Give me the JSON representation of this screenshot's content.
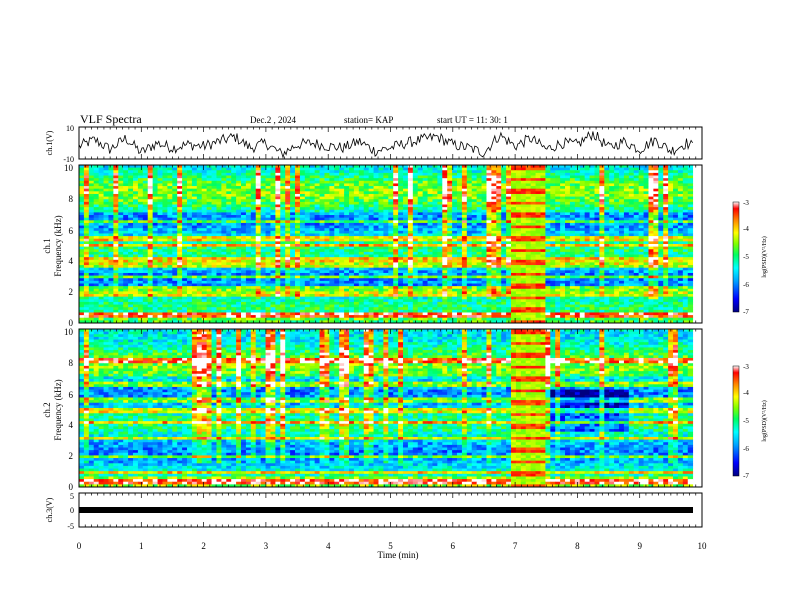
{
  "header": {
    "title": "VLF Spectra",
    "date": "Dec.2 , 2024",
    "station": "station= KAP",
    "start_ut": "start  UT =   11: 30: 1"
  },
  "colorbar": {
    "label": "log(PSD)(V²/Hz)",
    "ticks": [
      "-3",
      "-4",
      "-5",
      "-6",
      "-7"
    ],
    "stops": [
      "#000080",
      "#0000ff",
      "#00a0ff",
      "#00ffff",
      "#00ff80",
      "#80ff00",
      "#ffff00",
      "#ff8000",
      "#ff0000",
      "#ffffff"
    ]
  },
  "chart_data": [
    {
      "type": "line",
      "panel": "ch1-waveform",
      "ylabel": "ch.1(V)",
      "ylim": [
        -10,
        10
      ],
      "yticks": [
        "10",
        "-10"
      ],
      "x": [
        0,
        0.25,
        0.5,
        0.75,
        1.0,
        1.25,
        1.5,
        1.75,
        2.0,
        2.25,
        2.5,
        2.75,
        3.0,
        3.25,
        3.5,
        3.75,
        4.0,
        4.25,
        4.5,
        4.75,
        5.0,
        5.25,
        5.5,
        5.75,
        6.0,
        6.25,
        6.5,
        6.75,
        7.0,
        7.25,
        7.5,
        7.75,
        8.0,
        8.25,
        8.5,
        8.75,
        9.0,
        9.25,
        9.5,
        9.75,
        9.85
      ],
      "y": [
        -2,
        2,
        -4,
        3,
        -6,
        0,
        -3,
        -1,
        -2,
        1,
        4,
        -3,
        0,
        -7,
        -1,
        0,
        -2,
        -3,
        1,
        -5,
        -3,
        0,
        2,
        4,
        -1,
        -3,
        -6,
        5,
        -2,
        3,
        -4,
        0,
        -1,
        6,
        -3,
        1,
        -4,
        2,
        -5,
        0,
        -2
      ]
    },
    {
      "type": "heatmap",
      "panel": "ch1-spectrogram",
      "ylabel": "ch.1\nFrequency (kHz)",
      "ylim": [
        0,
        10
      ],
      "yticks": [
        "10",
        "8",
        "6",
        "4",
        "2",
        "0"
      ],
      "xlim": [
        0,
        9.85
      ],
      "strong_bands_khz": [
        0.5,
        1.8,
        2.2,
        2.9,
        3.7,
        4.0,
        4.9,
        5.3,
        6.4
      ],
      "burst_interval_min": [
        6.9,
        7.5
      ]
    },
    {
      "type": "heatmap",
      "panel": "ch2-spectrogram",
      "ylabel": "ch.2\nFrequency (kHz)",
      "ylim": [
        0,
        10
      ],
      "yticks": [
        "10",
        "8",
        "6",
        "4",
        "2",
        "0"
      ],
      "xlim": [
        0,
        9.85
      ],
      "strong_bands_khz": [
        0.3,
        0.9,
        1.9,
        3.1,
        4.1,
        4.8,
        5.5,
        6.5,
        8.0
      ],
      "burst_interval_min": [
        6.9,
        7.5
      ]
    },
    {
      "type": "line",
      "panel": "ch3-waveform",
      "ylabel": "ch.3(V)",
      "ylim": [
        -5,
        5
      ],
      "yticks": [
        "5",
        "0",
        "-5"
      ],
      "x": [
        0,
        9.85
      ],
      "y": [
        0,
        0
      ]
    }
  ],
  "xaxis": {
    "label": "Time  (min)",
    "ticks": [
      "0",
      "1",
      "2",
      "3",
      "4",
      "5",
      "6",
      "7",
      "8",
      "9",
      "10"
    ],
    "xlim": [
      0,
      10
    ]
  }
}
